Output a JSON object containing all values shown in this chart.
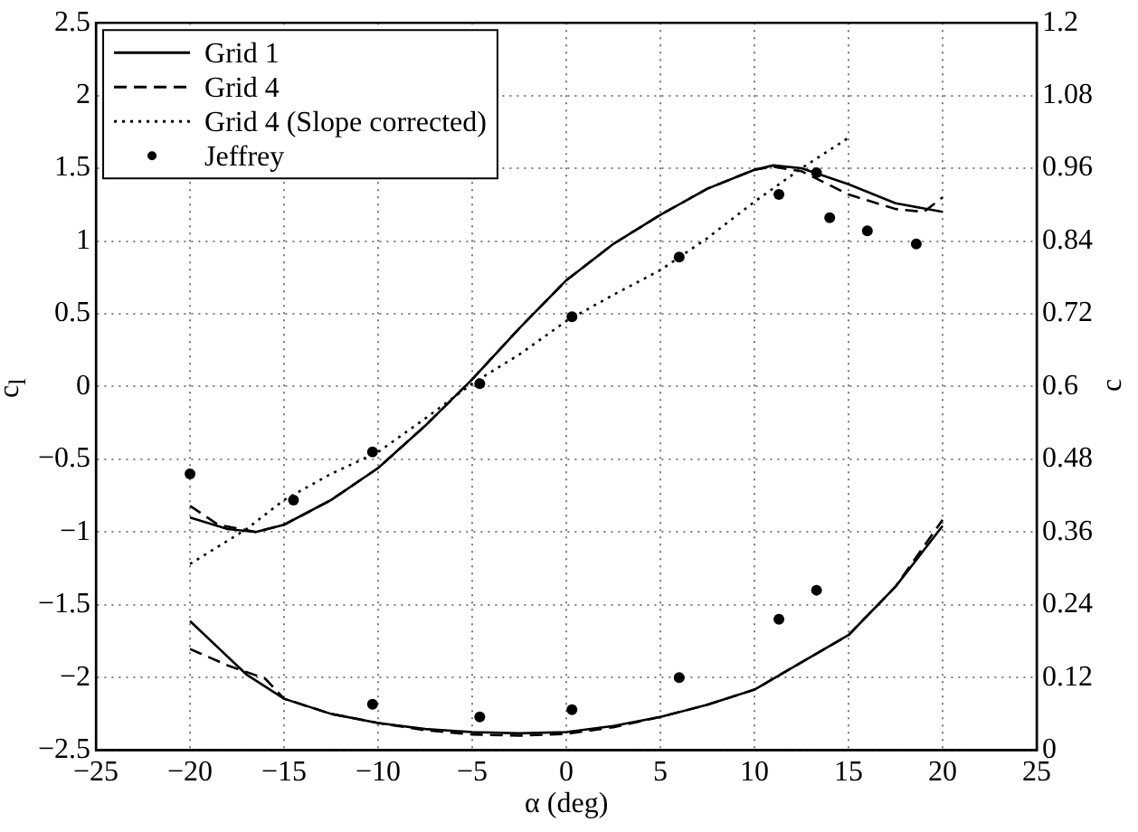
{
  "chart_data": {
    "type": "line",
    "xlabel": "α (deg)",
    "ylabel": "c$_{l}$",
    "y2label": "c",
    "xlim": [
      -25,
      25
    ],
    "xticks": [
      -25,
      -20,
      -15,
      -10,
      -5,
      0,
      5,
      10,
      15,
      20,
      25
    ],
    "ylim": [
      -2.5,
      2.5
    ],
    "yticks": [
      -2.5,
      -2,
      -1.5,
      -1,
      -0.5,
      0,
      0.5,
      1,
      1.5,
      2,
      2.5
    ],
    "y2lim": [
      0,
      1.2
    ],
    "y2ticks": [
      0,
      0.12,
      0.24,
      0.36,
      0.48,
      0.6,
      0.72,
      0.84,
      0.96,
      1.08,
      1.2
    ],
    "grid": true,
    "legend": "top left",
    "series": [
      {
        "name": "Grid 1",
        "color": "#000000",
        "line_style": "solid",
        "marker": "none",
        "x": [
          -20,
          -18,
          -16.5,
          -15,
          -12.5,
          -10,
          -7.5,
          -5,
          -2.5,
          0,
          2.5,
          5,
          7.5,
          10,
          11,
          12.5,
          15,
          17.5,
          20
        ],
        "values": [
          -0.9,
          -0.98,
          -1.0,
          -0.95,
          -0.78,
          -0.56,
          -0.27,
          0.05,
          0.4,
          0.73,
          0.98,
          1.18,
          1.36,
          1.49,
          1.52,
          1.5,
          1.39,
          1.26,
          1.2
        ]
      },
      {
        "name": "Grid 4",
        "color": "#000000",
        "line_style": "dashed",
        "marker": "none",
        "x": [
          -20,
          -18.5,
          -16.5,
          -15,
          -12.5,
          -10,
          -7.5,
          -5,
          -2.5,
          0,
          2.5,
          5,
          7.5,
          10,
          11,
          12.5,
          15,
          17.5,
          19,
          20
        ],
        "values": [
          -0.82,
          -0.95,
          -1.0,
          -0.95,
          -0.78,
          -0.56,
          -0.27,
          0.05,
          0.4,
          0.73,
          0.98,
          1.18,
          1.36,
          1.49,
          1.51,
          1.48,
          1.32,
          1.22,
          1.2,
          1.3
        ]
      },
      {
        "name": "Grid 4 (Slope corrected)",
        "color": "#000000",
        "line_style": "dotted",
        "marker": "none",
        "x": [
          -20,
          -17,
          -15,
          -12.5,
          -10,
          -7.5,
          -5,
          -2.5,
          0,
          2.5,
          5,
          7.5,
          10,
          12.5,
          15
        ],
        "values": [
          -1.22,
          -0.98,
          -0.78,
          -0.6,
          -0.45,
          -0.22,
          0.02,
          0.22,
          0.45,
          0.63,
          0.8,
          1.02,
          1.27,
          1.5,
          1.71
        ]
      },
      {
        "name": "Jeffrey",
        "type": "scatter",
        "color": "#000000",
        "marker": "circle",
        "x": [
          -20,
          -14.5,
          -10.3,
          -4.6,
          0.3,
          6,
          11.3,
          13.3,
          14,
          16,
          18.6
        ],
        "values": [
          -0.6,
          -0.78,
          -0.45,
          0.02,
          0.48,
          0.89,
          1.32,
          1.47,
          1.16,
          1.07,
          0.98
        ]
      },
      {
        "axis": "y2",
        "color": "#000000",
        "line_style": "solid",
        "marker": "none",
        "x": [
          -20,
          -17,
          -15,
          -12.5,
          -10,
          -7.5,
          -5,
          -2.5,
          0,
          2.5,
          5,
          7.5,
          10,
          12.5,
          15,
          17.5,
          20
        ],
        "values": [
          0.213,
          0.125,
          0.085,
          0.06,
          0.045,
          0.035,
          0.03,
          0.028,
          0.03,
          0.04,
          0.055,
          0.075,
          0.1,
          0.145,
          0.19,
          0.27,
          0.37
        ]
      },
      {
        "axis": "y2",
        "color": "#000000",
        "line_style": "dashed",
        "marker": "none",
        "x": [
          -20,
          -18,
          -16,
          -15,
          -12.5,
          -10,
          -7.5,
          -5,
          -2.5,
          0,
          2.5,
          5,
          7.5,
          10,
          12.5,
          15,
          17.5,
          20
        ],
        "values": [
          0.167,
          0.14,
          0.118,
          0.085,
          0.06,
          0.045,
          0.033,
          0.026,
          0.024,
          0.027,
          0.038,
          0.055,
          0.075,
          0.1,
          0.145,
          0.19,
          0.27,
          0.38
        ]
      },
      {
        "type": "scatter",
        "axis": "y2",
        "color": "#000000",
        "marker": "circle",
        "x": [
          -10.3,
          -4.6,
          0.3,
          6,
          11.3,
          13.3
        ],
        "values": [
          0.076,
          0.055,
          0.067,
          0.12,
          0.216,
          0.264
        ]
      }
    ]
  }
}
